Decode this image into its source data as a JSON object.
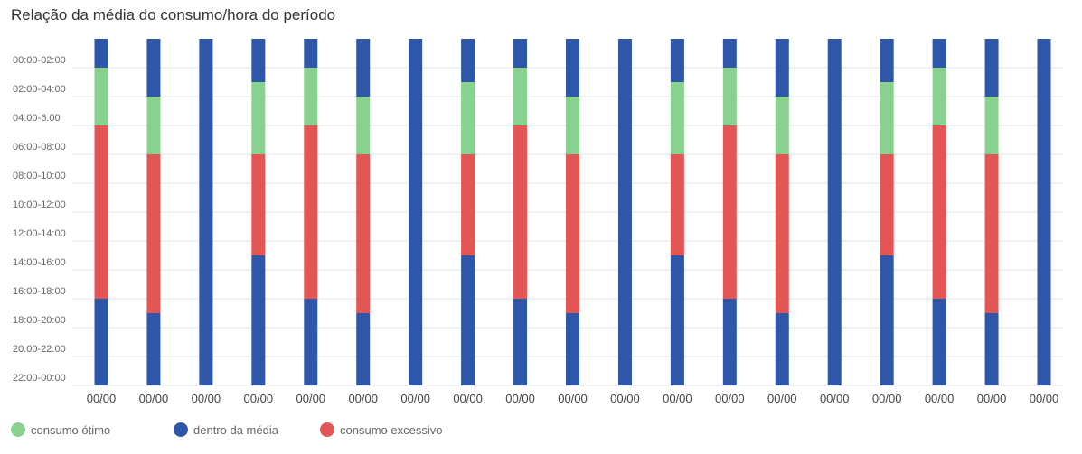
{
  "chart_data": {
    "type": "bar",
    "title": "Relação da média do consumo/hora do período",
    "categories": [
      "00/00",
      "00/00",
      "00/00",
      "00/00",
      "00/00",
      "00/00",
      "00/00",
      "00/00",
      "00/00",
      "00/00",
      "00/00",
      "00/00",
      "00/00",
      "00/00",
      "00/00",
      "00/00",
      "00/00",
      "00/00",
      "00/00"
    ],
    "y_categories": [
      "00:00-02:00",
      "02:00-04:00",
      "04:00-6:00",
      "06:00-08:00",
      "08:00-10:00",
      "10:00-12:00",
      "12:00-14:00",
      "14:00-16:00",
      "16:00-18:00",
      "18:00-20:00",
      "20:00-22:00",
      "22:00-00:00"
    ],
    "orientation": "vertical stacked, time of day from top to bottom",
    "segment_unit": "hours from 00:00",
    "series": [
      {
        "name": "consumo ótimo",
        "color": "#88d18e"
      },
      {
        "name": "dentro da média",
        "color": "#2e57a9"
      },
      {
        "name": "consumo excessivo",
        "color": "#e45655"
      }
    ],
    "bars": [
      [
        {
          "s": 1,
          "from": 0,
          "to": 2
        },
        {
          "s": 0,
          "from": 2,
          "to": 6
        },
        {
          "s": 2,
          "from": 6,
          "to": 18
        },
        {
          "s": 1,
          "from": 18,
          "to": 24
        }
      ],
      [
        {
          "s": 1,
          "from": 0,
          "to": 4
        },
        {
          "s": 0,
          "from": 4,
          "to": 8
        },
        {
          "s": 2,
          "from": 8,
          "to": 19
        },
        {
          "s": 1,
          "from": 19,
          "to": 24
        }
      ],
      [
        {
          "s": 1,
          "from": 0,
          "to": 24
        }
      ],
      [
        {
          "s": 1,
          "from": 0,
          "to": 3
        },
        {
          "s": 0,
          "from": 3,
          "to": 8
        },
        {
          "s": 2,
          "from": 8,
          "to": 15
        },
        {
          "s": 1,
          "from": 15,
          "to": 24
        }
      ],
      [
        {
          "s": 1,
          "from": 0,
          "to": 2
        },
        {
          "s": 0,
          "from": 2,
          "to": 6
        },
        {
          "s": 2,
          "from": 6,
          "to": 18
        },
        {
          "s": 1,
          "from": 18,
          "to": 24
        }
      ],
      [
        {
          "s": 1,
          "from": 0,
          "to": 4
        },
        {
          "s": 0,
          "from": 4,
          "to": 8
        },
        {
          "s": 2,
          "from": 8,
          "to": 19
        },
        {
          "s": 1,
          "from": 19,
          "to": 24
        }
      ],
      [
        {
          "s": 1,
          "from": 0,
          "to": 24
        }
      ],
      [
        {
          "s": 1,
          "from": 0,
          "to": 3
        },
        {
          "s": 0,
          "from": 3,
          "to": 8
        },
        {
          "s": 2,
          "from": 8,
          "to": 15
        },
        {
          "s": 1,
          "from": 15,
          "to": 24
        }
      ],
      [
        {
          "s": 1,
          "from": 0,
          "to": 2
        },
        {
          "s": 0,
          "from": 2,
          "to": 6
        },
        {
          "s": 2,
          "from": 6,
          "to": 18
        },
        {
          "s": 1,
          "from": 18,
          "to": 24
        }
      ],
      [
        {
          "s": 1,
          "from": 0,
          "to": 4
        },
        {
          "s": 0,
          "from": 4,
          "to": 8
        },
        {
          "s": 2,
          "from": 8,
          "to": 19
        },
        {
          "s": 1,
          "from": 19,
          "to": 24
        }
      ],
      [
        {
          "s": 1,
          "from": 0,
          "to": 24
        }
      ],
      [
        {
          "s": 1,
          "from": 0,
          "to": 3
        },
        {
          "s": 0,
          "from": 3,
          "to": 8
        },
        {
          "s": 2,
          "from": 8,
          "to": 15
        },
        {
          "s": 1,
          "from": 15,
          "to": 24
        }
      ],
      [
        {
          "s": 1,
          "from": 0,
          "to": 2
        },
        {
          "s": 0,
          "from": 2,
          "to": 6
        },
        {
          "s": 2,
          "from": 6,
          "to": 18
        },
        {
          "s": 1,
          "from": 18,
          "to": 24
        }
      ],
      [
        {
          "s": 1,
          "from": 0,
          "to": 4
        },
        {
          "s": 0,
          "from": 4,
          "to": 8
        },
        {
          "s": 2,
          "from": 8,
          "to": 19
        },
        {
          "s": 1,
          "from": 19,
          "to": 24
        }
      ],
      [
        {
          "s": 1,
          "from": 0,
          "to": 24
        }
      ],
      [
        {
          "s": 1,
          "from": 0,
          "to": 3
        },
        {
          "s": 0,
          "from": 3,
          "to": 8
        },
        {
          "s": 2,
          "from": 8,
          "to": 15
        },
        {
          "s": 1,
          "from": 15,
          "to": 24
        }
      ],
      [
        {
          "s": 1,
          "from": 0,
          "to": 2
        },
        {
          "s": 0,
          "from": 2,
          "to": 6
        },
        {
          "s": 2,
          "from": 6,
          "to": 18
        },
        {
          "s": 1,
          "from": 18,
          "to": 24
        }
      ],
      [
        {
          "s": 1,
          "from": 0,
          "to": 4
        },
        {
          "s": 0,
          "from": 4,
          "to": 8
        },
        {
          "s": 2,
          "from": 8,
          "to": 19
        },
        {
          "s": 1,
          "from": 19,
          "to": 24
        }
      ],
      [
        {
          "s": 1,
          "from": 0,
          "to": 24
        }
      ]
    ],
    "grid": true,
    "legend_position": "bottom-left"
  }
}
